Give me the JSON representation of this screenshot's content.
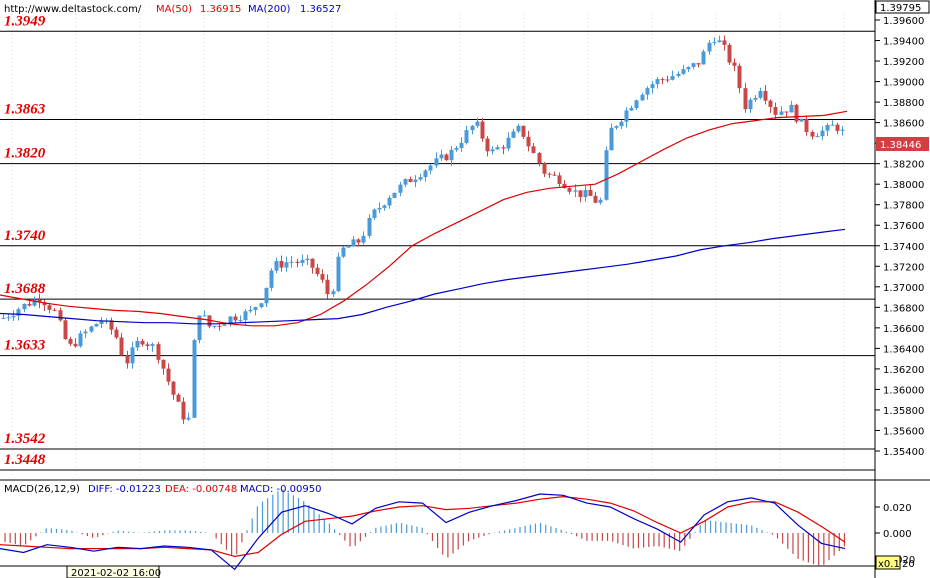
{
  "header": {
    "url": "http://www.deltastock.com/",
    "ma50_label": "MA(50)",
    "ma50_value": "1.36915",
    "ma200_label": "MA(200)",
    "ma200_value": "1.36527"
  },
  "chart_data": [
    {
      "type": "candlestick",
      "ylim": [
        1.3524,
        1.3979
      ],
      "price_ticks": [
        "1.39600",
        "1.39400",
        "1.39200",
        "1.39000",
        "1.38800",
        "1.38600",
        "1.38400",
        "1.38200",
        "1.38000",
        "1.37800",
        "1.37600",
        "1.37400",
        "1.37200",
        "1.37000",
        "1.36800",
        "1.36600",
        "1.36400",
        "1.36200",
        "1.36000",
        "1.35800",
        "1.35600",
        "1.35400"
      ],
      "current_high": "1.39795",
      "last_price": "1.38446",
      "levels": [
        "1.3949",
        "1.3863",
        "1.3820",
        "1.3740",
        "1.3688",
        "1.3633",
        "1.3542",
        "1.3448"
      ],
      "series": [
        {
          "name": "MA(50)",
          "color": "#e00000",
          "values": [
            1.3692,
            1.3688,
            1.3684,
            1.3681,
            1.3679,
            1.3677,
            1.3676,
            1.3674,
            1.3671,
            1.3668,
            1.3664,
            1.3662,
            1.3662,
            1.3665,
            1.3673,
            1.3686,
            1.3702,
            1.372,
            1.374,
            1.3752,
            1.3763,
            1.3774,
            1.3785,
            1.3792,
            1.3796,
            1.3798,
            1.38,
            1.381,
            1.3822,
            1.3834,
            1.3845,
            1.3853,
            1.3859,
            1.3862,
            1.3865,
            1.3866,
            1.3867,
            1.3871
          ]
        },
        {
          "name": "MA(200)",
          "color": "#0000c8",
          "values": [
            1.3674,
            1.3673,
            1.3671,
            1.3669,
            1.3667,
            1.3666,
            1.3665,
            1.3665,
            1.3664,
            1.3664,
            1.3665,
            1.3666,
            1.3667,
            1.3668,
            1.3669,
            1.3673,
            1.368,
            1.3686,
            1.3693,
            1.3698,
            1.3703,
            1.3707,
            1.371,
            1.3713,
            1.3716,
            1.3719,
            1.3722,
            1.3726,
            1.373,
            1.3736,
            1.374,
            1.3743,
            1.3747,
            1.375,
            1.3753,
            1.3756
          ]
        }
      ]
    },
    {
      "type": "macd",
      "title": "MACD(26,12,9)",
      "diff_label": "DIFF: -0.01223",
      "dea_label": "DEA: -0.00748",
      "macd_label": "MACD: -0.00950",
      "ylim": [
        -0.03,
        0.04
      ],
      "ticks": [
        "0.020",
        "0.000",
        "-0.020"
      ],
      "diff": [
        -0.012,
        -0.015,
        -0.009,
        -0.011,
        -0.014,
        -0.011,
        -0.012,
        -0.01,
        -0.011,
        -0.013,
        -0.028,
        -0.004,
        0.016,
        0.021,
        0.015,
        0.007,
        0.019,
        0.024,
        0.023,
        0.008,
        0.016,
        0.021,
        0.025,
        0.03,
        0.029,
        0.023,
        0.02,
        0.011,
        0.003,
        -0.007,
        0.014,
        0.024,
        0.027,
        0.023,
        0.006,
        -0.008,
        -0.012
      ],
      "dea": [
        -0.009,
        -0.01,
        -0.011,
        -0.012,
        -0.012,
        -0.012,
        -0.012,
        -0.011,
        -0.012,
        -0.013,
        -0.018,
        -0.015,
        -0.001,
        0.009,
        0.011,
        0.013,
        0.017,
        0.02,
        0.021,
        0.018,
        0.019,
        0.021,
        0.023,
        0.026,
        0.028,
        0.026,
        0.023,
        0.017,
        0.008,
        0.0,
        0.009,
        0.02,
        0.024,
        0.024,
        0.016,
        0.005,
        -0.007
      ]
    }
  ],
  "footer": {
    "date_label": "2021-02-02 16:00",
    "zoom_label": "x0.1",
    "zoom_tail": "20"
  }
}
